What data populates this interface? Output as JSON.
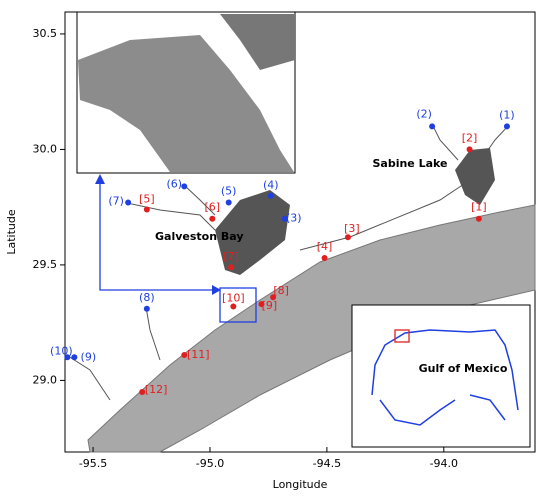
{
  "chart_data": {
    "type": "map",
    "x_label": "Longitude",
    "y_label": "Latitude",
    "xlim": [
      -95.62,
      -93.61
    ],
    "ylim": [
      28.69,
      30.595
    ],
    "xticks": [
      -95.5,
      {
        "value": -95,
        "label": "-95.0"
      },
      -94.5,
      {
        "value": -94,
        "label": "-94.0"
      }
    ],
    "yticks": [
      {
        "value": 29,
        "label": "29.0"
      },
      29.5,
      {
        "value": 30,
        "label": "30.0"
      },
      30.5
    ],
    "annotations": [
      "Sabine Lake",
      "Galveston Bay",
      "Gulf of Mexico"
    ],
    "stations_blue": {
      "color": "#1f3fe0",
      "labels": [
        "(1)",
        "(2)",
        "(3)",
        "(4)",
        "(5)",
        "(6)",
        "(7)",
        "(8)",
        "(9)",
        "(10)"
      ],
      "x": [
        -93.73,
        -94.05,
        -94.68,
        -94.74,
        -94.92,
        -95.11,
        -95.35,
        -95.27,
        -95.58,
        -95.61
      ],
      "y": [
        30.1,
        30.1,
        29.7,
        29.8,
        29.77,
        29.84,
        29.77,
        29.31,
        29.1,
        29.1
      ]
    },
    "stations_red": {
      "color": "#e02020",
      "labels": [
        "[1]",
        "[2]",
        "[3]",
        "[4]",
        "[5]",
        "[6]",
        "[7]",
        "[8]",
        "[9]",
        "[10]",
        "[11]",
        "[12]"
      ],
      "x": [
        -93.85,
        -93.89,
        -94.41,
        -94.51,
        -95.27,
        -94.99,
        -94.91,
        -94.73,
        -94.78,
        -94.9,
        -95.11,
        -95.29
      ],
      "y": [
        29.7,
        30.0,
        29.62,
        29.53,
        29.74,
        29.7,
        29.49,
        29.36,
        29.33,
        29.32,
        29.11,
        28.95
      ]
    }
  }
}
